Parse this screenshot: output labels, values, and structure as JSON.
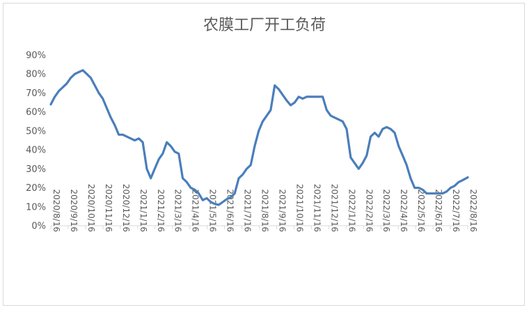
{
  "chart_data": {
    "type": "line",
    "title": "农膜工厂开工负荷",
    "xlabel": "",
    "ylabel": "",
    "ylim": [
      0,
      90
    ],
    "yticks": [
      "0%",
      "10%",
      "20%",
      "30%",
      "40%",
      "50%",
      "60%",
      "70%",
      "80%",
      "90%"
    ],
    "grid": false,
    "legend": "none",
    "line_color": "#4a7ebb",
    "x_tick_labels": [
      "2020/8/16",
      "2020/9/16",
      "2020/10/16",
      "2020/11/16",
      "2020/12/16",
      "2021/1/16",
      "2021/2/16",
      "2021/3/16",
      "2021/4/16",
      "2021/5/16",
      "2021/6/16",
      "2021/7/16",
      "2021/8/16",
      "2021/9/16",
      "2021/10/16",
      "2021/11/16",
      "2021/12/16",
      "2022/1/16",
      "2022/2/16",
      "2022/3/16",
      "2022/4/16",
      "2022/5/16",
      "2022/6/16",
      "2022/7/16",
      "2022/8/16"
    ],
    "series": [
      {
        "values": [
          [
            "2020-08-16",
            64
          ],
          [
            "2020-08-23",
            68
          ],
          [
            "2020-08-30",
            71
          ],
          [
            "2020-09-06",
            73
          ],
          [
            "2020-09-13",
            75
          ],
          [
            "2020-09-20",
            78
          ],
          [
            "2020-09-27",
            80
          ],
          [
            "2020-10-04",
            81
          ],
          [
            "2020-10-11",
            82
          ],
          [
            "2020-10-18",
            80
          ],
          [
            "2020-10-25",
            78
          ],
          [
            "2020-11-01",
            74
          ],
          [
            "2020-11-08",
            70
          ],
          [
            "2020-11-15",
            67
          ],
          [
            "2020-11-22",
            62
          ],
          [
            "2020-11-29",
            57
          ],
          [
            "2020-12-06",
            53
          ],
          [
            "2020-12-13",
            48
          ],
          [
            "2020-12-20",
            48
          ],
          [
            "2020-12-27",
            47
          ],
          [
            "2021-01-03",
            46
          ],
          [
            "2021-01-10",
            45
          ],
          [
            "2021-01-17",
            46
          ],
          [
            "2021-01-24",
            44
          ],
          [
            "2021-01-31",
            30
          ],
          [
            "2021-02-07",
            25
          ],
          [
            "2021-02-14",
            30
          ],
          [
            "2021-02-21",
            35
          ],
          [
            "2021-02-28",
            38
          ],
          [
            "2021-03-07",
            44
          ],
          [
            "2021-03-14",
            42
          ],
          [
            "2021-03-21",
            39
          ],
          [
            "2021-03-28",
            38
          ],
          [
            "2021-04-04",
            25
          ],
          [
            "2021-04-11",
            23
          ],
          [
            "2021-04-18",
            20
          ],
          [
            "2021-04-25",
            19
          ],
          [
            "2021-05-02",
            17
          ],
          [
            "2021-05-09",
            13.5
          ],
          [
            "2021-05-16",
            14.5
          ],
          [
            "2021-05-23",
            12.5
          ],
          [
            "2021-05-30",
            11.5
          ],
          [
            "2021-06-06",
            11
          ],
          [
            "2021-06-13",
            12.5
          ],
          [
            "2021-06-20",
            14
          ],
          [
            "2021-06-27",
            15
          ],
          [
            "2021-07-04",
            17
          ],
          [
            "2021-07-11",
            25
          ],
          [
            "2021-07-18",
            27
          ],
          [
            "2021-07-25",
            30
          ],
          [
            "2021-08-01",
            32
          ],
          [
            "2021-08-08",
            42
          ],
          [
            "2021-08-15",
            50
          ],
          [
            "2021-08-22",
            55
          ],
          [
            "2021-08-29",
            58
          ],
          [
            "2021-09-05",
            61
          ],
          [
            "2021-09-12",
            74
          ],
          [
            "2021-09-19",
            72
          ],
          [
            "2021-09-26",
            69
          ],
          [
            "2021-10-03",
            66
          ],
          [
            "2021-10-10",
            63.5
          ],
          [
            "2021-10-17",
            65
          ],
          [
            "2021-10-24",
            68
          ],
          [
            "2021-10-31",
            67
          ],
          [
            "2021-11-07",
            68
          ],
          [
            "2021-11-14",
            68
          ],
          [
            "2021-11-21",
            68
          ],
          [
            "2021-11-28",
            68
          ],
          [
            "2021-12-05",
            68
          ],
          [
            "2021-12-12",
            61
          ],
          [
            "2021-12-19",
            58
          ],
          [
            "2021-12-26",
            57
          ],
          [
            "2022-01-02",
            56
          ],
          [
            "2022-01-09",
            55
          ],
          [
            "2022-01-16",
            51
          ],
          [
            "2022-01-23",
            36
          ],
          [
            "2022-01-30",
            33
          ],
          [
            "2022-02-06",
            30
          ],
          [
            "2022-02-13",
            33
          ],
          [
            "2022-02-20",
            37
          ],
          [
            "2022-02-27",
            47
          ],
          [
            "2022-03-06",
            49
          ],
          [
            "2022-03-13",
            47
          ],
          [
            "2022-03-20",
            51
          ],
          [
            "2022-03-27",
            52
          ],
          [
            "2022-04-03",
            51
          ],
          [
            "2022-04-10",
            49
          ],
          [
            "2022-04-17",
            42
          ],
          [
            "2022-04-24",
            37
          ],
          [
            "2022-05-01",
            32
          ],
          [
            "2022-05-08",
            25
          ],
          [
            "2022-05-15",
            20
          ],
          [
            "2022-05-22",
            20
          ],
          [
            "2022-05-29",
            19
          ],
          [
            "2022-06-05",
            17
          ],
          [
            "2022-06-12",
            17
          ],
          [
            "2022-06-19",
            17
          ],
          [
            "2022-06-26",
            17
          ],
          [
            "2022-07-03",
            17
          ],
          [
            "2022-07-10",
            18
          ],
          [
            "2022-07-17",
            20
          ],
          [
            "2022-07-24",
            21
          ],
          [
            "2022-07-31",
            23
          ],
          [
            "2022-08-07",
            24
          ],
          [
            "2022-08-16",
            25.5
          ]
        ]
      }
    ]
  }
}
